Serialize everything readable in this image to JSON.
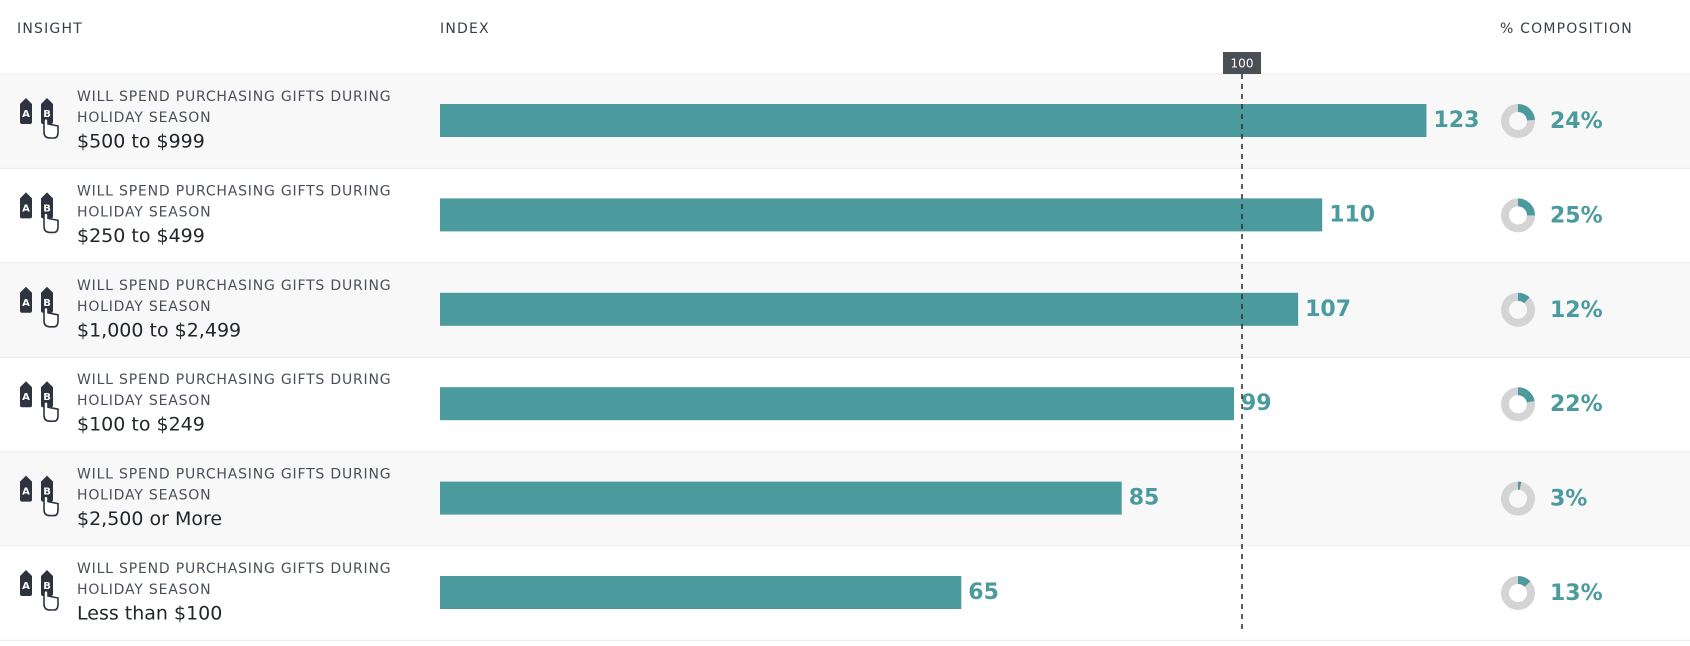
{
  "columns": [
    "INSIGHT",
    "INDEX",
    "% COMPOSITION"
  ],
  "reference": 100,
  "icon": [
    "A",
    "B"
  ],
  "color": "#4a9a9e",
  "rows": [
    {
      "insight": [
        "WILL SPEND PURCHASING GIFTS DURING",
        "HOLIDAY SEASON"
      ],
      "segment": "$500 to $999",
      "index": 123,
      "composition": 24,
      "composition_label": "24%"
    },
    {
      "insight": [
        "WILL SPEND PURCHASING GIFTS DURING",
        "HOLIDAY SEASON"
      ],
      "segment": "$250 to $499",
      "index": 110,
      "composition": 25,
      "composition_label": "25%"
    },
    {
      "insight": [
        "WILL SPEND PURCHASING GIFTS DURING",
        "HOLIDAY SEASON"
      ],
      "segment": "$1,000 to $2,499",
      "index": 107,
      "composition": 12,
      "composition_label": "12%"
    },
    {
      "insight": [
        "WILL SPEND PURCHASING GIFTS DURING",
        "HOLIDAY SEASON"
      ],
      "segment": "$100 to $249",
      "index": 99,
      "composition": 22,
      "composition_label": "22%"
    },
    {
      "insight": [
        "WILL SPEND PURCHASING GIFTS DURING",
        "HOLIDAY SEASON"
      ],
      "segment": "$2,500 or More",
      "index": 85,
      "composition": 3,
      "composition_label": "3%"
    },
    {
      "insight": [
        "WILL SPEND PURCHASING GIFTS DURING",
        "HOLIDAY SEASON"
      ],
      "segment": "Less than $100",
      "index": 65,
      "composition": 13,
      "composition_label": "13%"
    }
  ]
}
